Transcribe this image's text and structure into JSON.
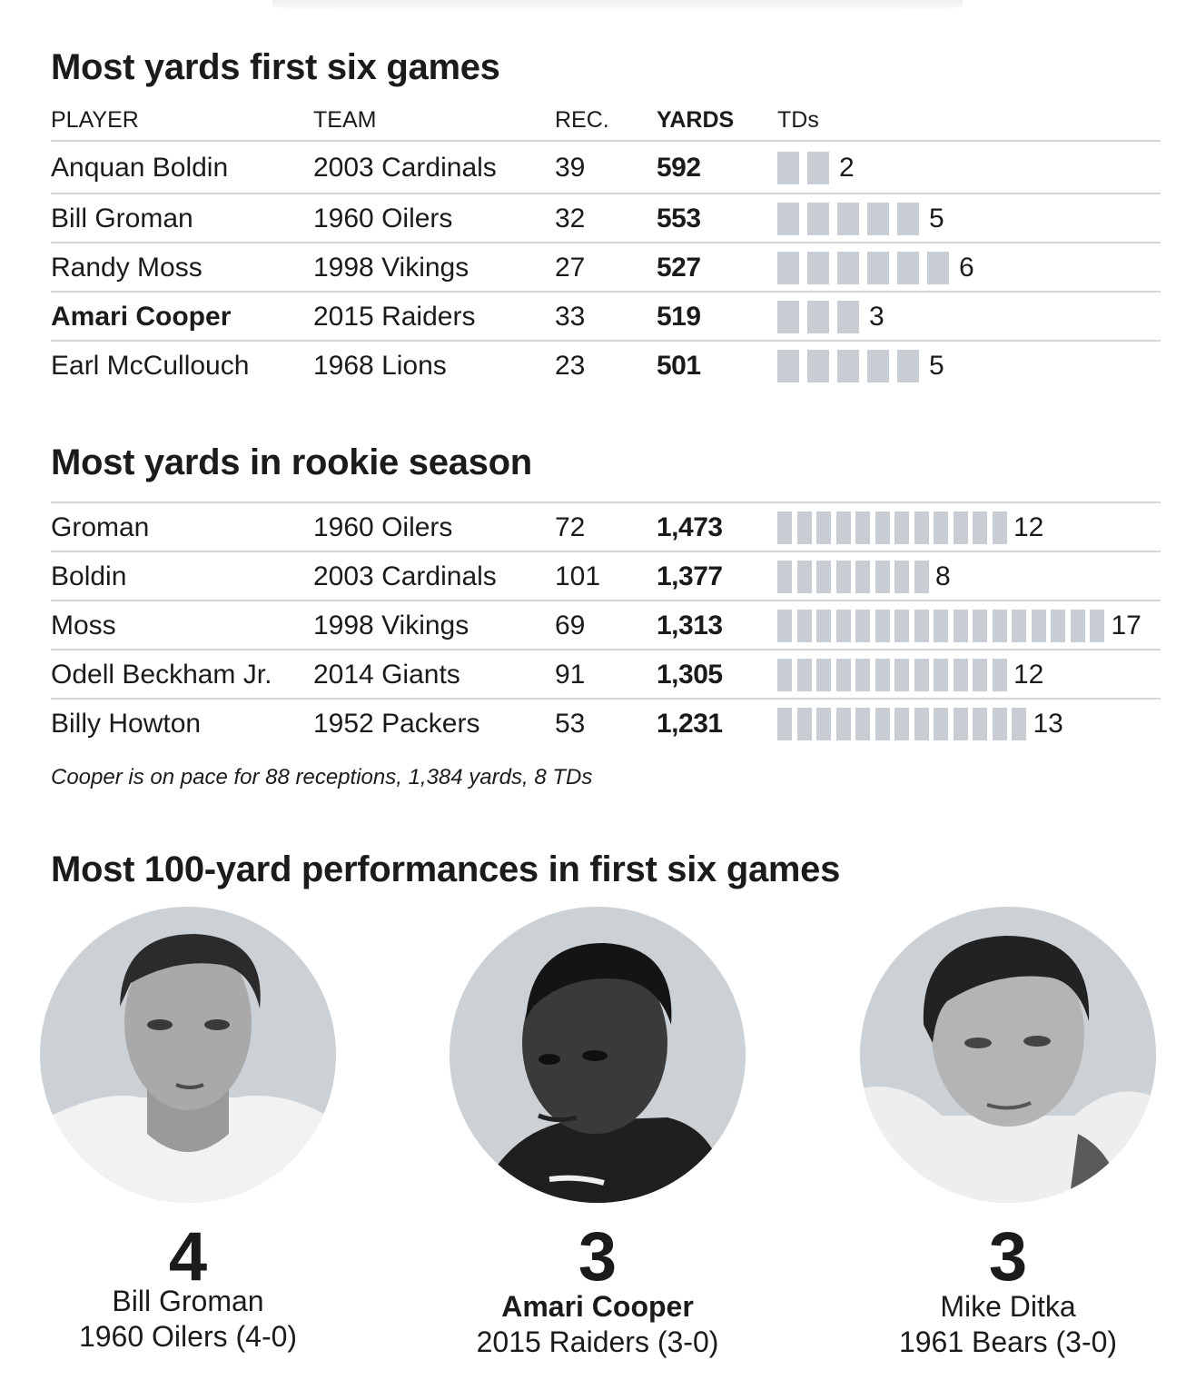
{
  "chart_data": [
    {
      "type": "table",
      "title": "Most yards first six games",
      "columns": [
        "PLAYER",
        "TEAM",
        "REC.",
        "YARDS",
        "TDs"
      ],
      "rows": [
        {
          "player": "Anquan Boldin",
          "team": "2003 Cardinals",
          "rec": "39",
          "yards": "592",
          "tds": 2,
          "tds_label": "2",
          "highlight": false
        },
        {
          "player": "Bill Groman",
          "team": "1960 Oilers",
          "rec": "32",
          "yards": "553",
          "tds": 5,
          "tds_label": "5",
          "highlight": false
        },
        {
          "player": "Randy Moss",
          "team": "1998 Vikings",
          "rec": "27",
          "yards": "527",
          "tds": 6,
          "tds_label": "6",
          "highlight": false
        },
        {
          "player": "Amari Cooper",
          "team": "2015 Raiders",
          "rec": "33",
          "yards": "519",
          "tds": 3,
          "tds_label": "3",
          "highlight": true
        },
        {
          "player": "Earl McCullouch",
          "team": "1968 Lions",
          "rec": "23",
          "yards": "501",
          "tds": 5,
          "tds_label": "5",
          "highlight": false
        }
      ]
    },
    {
      "type": "table",
      "title": "Most yards in rookie season",
      "rows": [
        {
          "player": "Groman",
          "team": "1960 Oilers",
          "rec": "72",
          "yards": "1,473",
          "tds": 12,
          "tds_label": "12",
          "highlight": false
        },
        {
          "player": "Boldin",
          "team": "2003 Cardinals",
          "rec": "101",
          "yards": "1,377",
          "tds": 8,
          "tds_label": "8",
          "highlight": false
        },
        {
          "player": "Moss",
          "team": "1998 Vikings",
          "rec": "69",
          "yards": "1,313",
          "tds": 17,
          "tds_label": "17",
          "highlight": false
        },
        {
          "player": "Odell Beckham Jr.",
          "team": "2014 Giants",
          "rec": "91",
          "yards": "1,305",
          "tds": 12,
          "tds_label": "12",
          "highlight": false
        },
        {
          "player": "Billy Howton",
          "team": "1952 Packers",
          "rec": "53",
          "yards": "1,231",
          "tds": 13,
          "tds_label": "13",
          "highlight": false
        }
      ],
      "note": "Cooper is on pace for 88 receptions, 1,384 yards, 8 TDs"
    },
    {
      "type": "bar",
      "title": "Most 100-yard performances in first six games",
      "items": [
        {
          "count": "4",
          "value": 4,
          "name": "Bill Groman",
          "team": "1960 Oilers (4-0)",
          "highlight": false
        },
        {
          "count": "3",
          "value": 3,
          "name": "Amari Cooper",
          "team": "2015 Raiders (3-0)",
          "highlight": true
        },
        {
          "count": "3",
          "value": 3,
          "name": "Mike Ditka",
          "team": "1961 Bears  (3-0)",
          "highlight": false
        }
      ]
    }
  ],
  "colors": {
    "bar": "#c9ced4",
    "portrait_bg": "#ccd1d6",
    "rule": "#d6d6d6",
    "text": "#1b1b1b"
  }
}
